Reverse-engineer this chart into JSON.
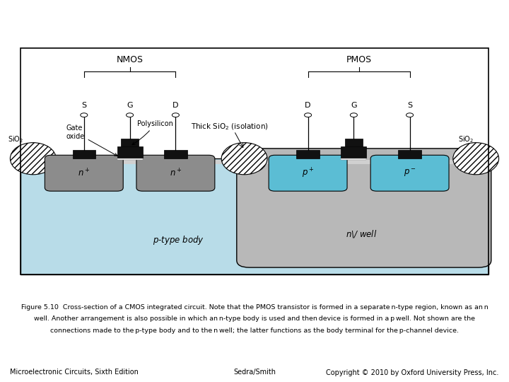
{
  "fig_width": 7.2,
  "fig_height": 5.4,
  "dpi": 100,
  "bg_color": "#ffffff",
  "diagram": {
    "substrate_color": "#b8dce8",
    "nwell_color": "#b8b8b8",
    "ndiff_color": "#8c8c8c",
    "pdiff_color": "#5bbdd4",
    "border_color": "#000000",
    "metal_color": "#111111",
    "hatch_bg": "#ffffff"
  },
  "caption_line1": "Figure 5.10  Cross-section of a CMOS integrated circuit. Note that the PMOS transistor is formed in a separate n-type region, known as an n",
  "caption_line2": "well. Another arrangement is also possible in which an n-type body is used and then device is formed in a p well. Not shown are the",
  "caption_line3": "connections made to the p-type body and to the n well; the latter functions as the body terminal for the p-channel device.",
  "footer_left": "Microelectronic Circuits, Sixth Edition",
  "footer_center": "Sedra/Smith",
  "footer_right": "Copyright © 2010 by Oxford University Press, Inc."
}
